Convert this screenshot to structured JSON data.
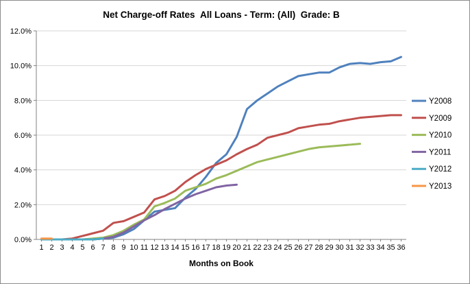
{
  "chart_data": {
    "type": "line",
    "title": "Net Charge-off Rates  All Loans - Term: (All)  Grade: B",
    "xlabel": "Months on Book",
    "ylabel": "",
    "x": [
      1,
      2,
      3,
      4,
      5,
      6,
      7,
      8,
      9,
      10,
      11,
      12,
      13,
      14,
      15,
      16,
      17,
      18,
      19,
      20,
      21,
      22,
      23,
      24,
      25,
      26,
      27,
      28,
      29,
      30,
      31,
      32,
      33,
      34,
      35,
      36
    ],
    "ylim": [
      0,
      12
    ],
    "yticks": [
      0,
      2,
      4,
      6,
      8,
      10,
      12
    ],
    "ytick_labels": [
      "0.0%",
      "2.0%",
      "4.0%",
      "6.0%",
      "8.0%",
      "10.0%",
      "12.0%"
    ],
    "grid": true,
    "legend_position": "right",
    "series": [
      {
        "name": "Y2008",
        "color": "#4F81BD",
        "values": [
          0.0,
          0.0,
          0.0,
          0.0,
          0.0,
          0.0,
          0.05,
          0.1,
          0.3,
          0.6,
          1.1,
          1.6,
          1.7,
          1.8,
          2.4,
          2.9,
          3.6,
          4.4,
          4.9,
          5.9,
          7.5,
          8.0,
          8.4,
          8.8,
          9.1,
          9.4,
          9.5,
          9.6,
          9.6,
          9.9,
          10.1,
          10.15,
          10.1,
          10.2,
          10.25,
          10.5
        ]
      },
      {
        "name": "Y2009",
        "color": "#C0504D",
        "values": [
          0.0,
          0.0,
          0.0,
          0.05,
          0.2,
          0.35,
          0.5,
          0.95,
          1.05,
          1.3,
          1.55,
          2.3,
          2.5,
          2.8,
          3.3,
          3.7,
          4.05,
          4.3,
          4.55,
          4.9,
          5.2,
          5.45,
          5.85,
          6.0,
          6.15,
          6.4,
          6.5,
          6.6,
          6.65,
          6.8,
          6.9,
          7.0,
          7.05,
          7.1,
          7.15,
          7.15
        ]
      },
      {
        "name": "Y2010",
        "color": "#9BBB59",
        "values": [
          0.0,
          0.0,
          0.0,
          0.0,
          0.0,
          0.05,
          0.1,
          0.25,
          0.5,
          0.85,
          1.15,
          1.9,
          2.1,
          2.35,
          2.8,
          3.0,
          3.2,
          3.5,
          3.7,
          3.95,
          4.2,
          4.45,
          4.6,
          4.75,
          4.9,
          5.05,
          5.2,
          5.3,
          5.35,
          5.4,
          5.45,
          5.5
        ]
      },
      {
        "name": "Y2011",
        "color": "#8064A2",
        "values": [
          0.0,
          0.0,
          0.0,
          0.0,
          0.0,
          0.0,
          0.05,
          0.15,
          0.4,
          0.75,
          1.1,
          1.4,
          1.75,
          2.05,
          2.35,
          2.6,
          2.8,
          3.0,
          3.1,
          3.15
        ]
      },
      {
        "name": "Y2012",
        "color": "#4BACC6",
        "values": [
          0.0,
          0.0,
          0.0,
          0.0,
          0.0,
          0.0,
          0.05
        ]
      },
      {
        "name": "Y2013",
        "color": "#F79646",
        "values": [
          0.05,
          0.05
        ]
      }
    ]
  }
}
